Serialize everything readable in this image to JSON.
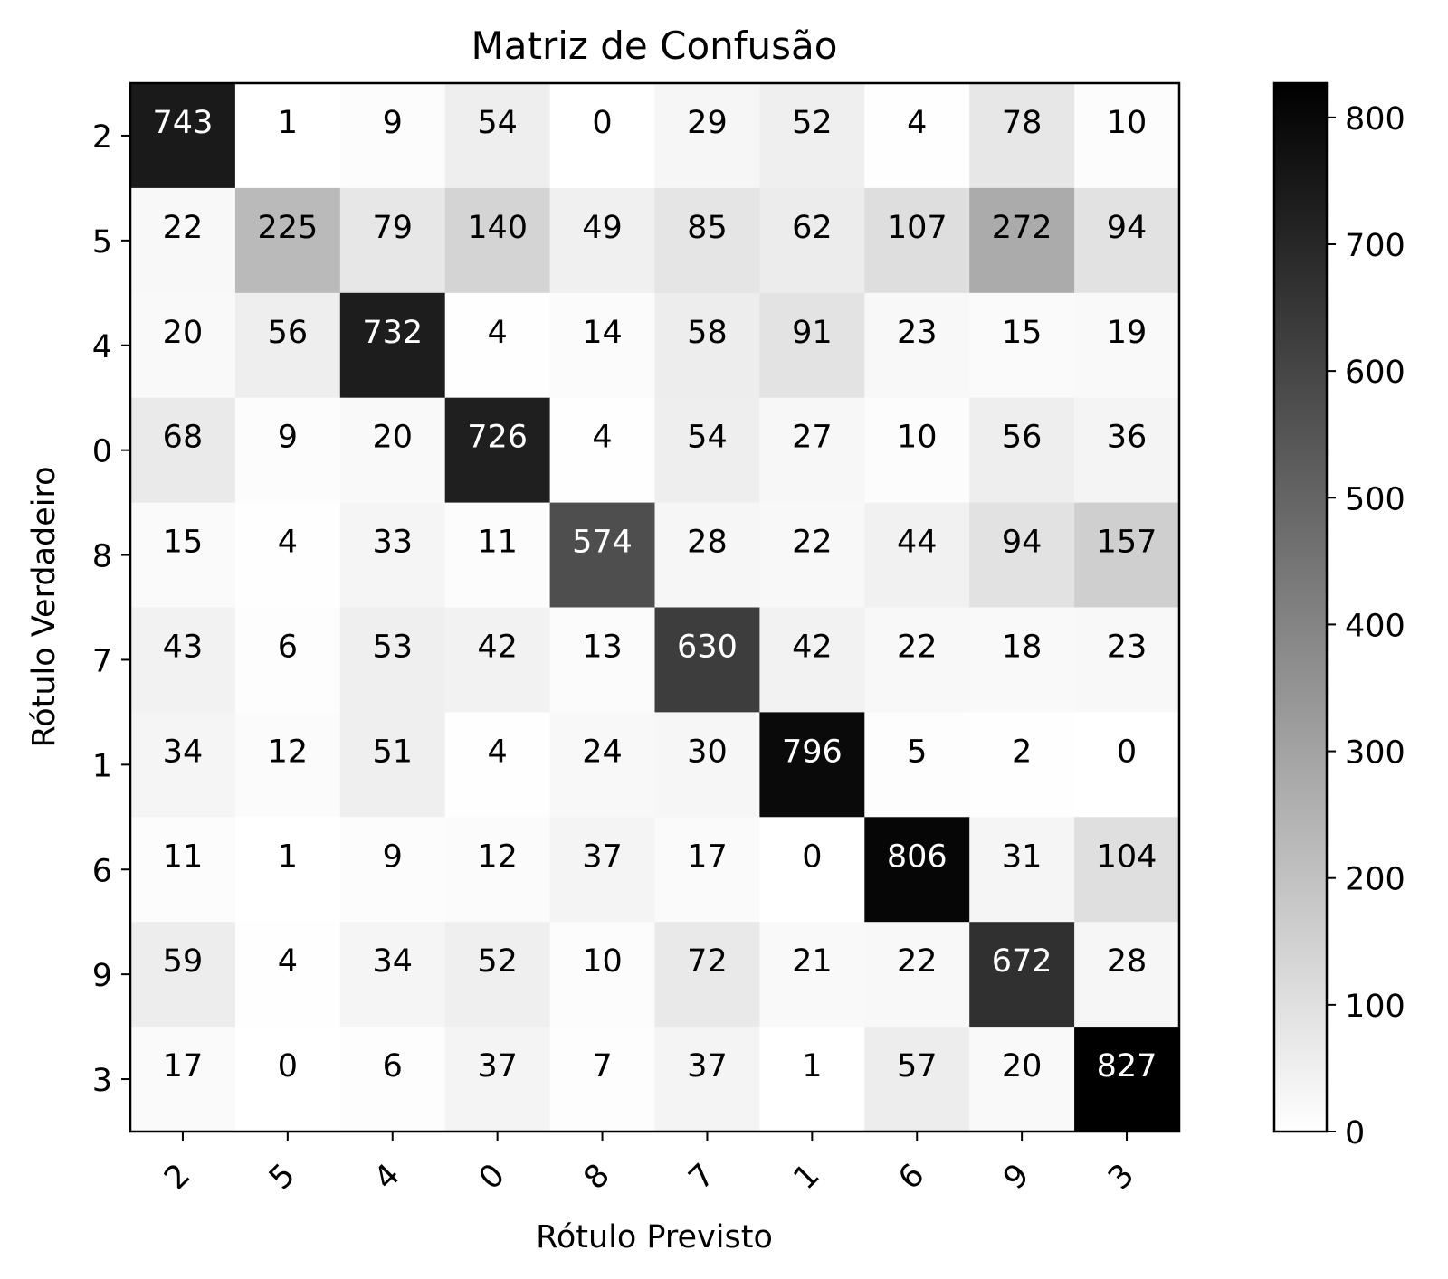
{
  "chart_data": {
    "type": "heatmap",
    "title": "Matriz de Confusão",
    "xlabel": "Rótulo Previsto",
    "ylabel": "Rótulo Verdadeiro",
    "x_categories": [
      "2",
      "5",
      "4",
      "0",
      "8",
      "7",
      "1",
      "6",
      "9",
      "3"
    ],
    "y_categories": [
      "2",
      "5",
      "4",
      "0",
      "8",
      "7",
      "1",
      "6",
      "9",
      "3"
    ],
    "values": [
      [
        743,
        1,
        9,
        54,
        0,
        29,
        52,
        4,
        78,
        10
      ],
      [
        22,
        225,
        79,
        140,
        49,
        85,
        62,
        107,
        272,
        94
      ],
      [
        20,
        56,
        732,
        4,
        14,
        58,
        91,
        23,
        15,
        19
      ],
      [
        68,
        9,
        20,
        726,
        4,
        54,
        27,
        10,
        56,
        36
      ],
      [
        15,
        4,
        33,
        11,
        574,
        28,
        22,
        44,
        94,
        157
      ],
      [
        43,
        6,
        53,
        42,
        13,
        630,
        42,
        22,
        18,
        23
      ],
      [
        34,
        12,
        51,
        4,
        24,
        30,
        796,
        5,
        2,
        0
      ],
      [
        11,
        1,
        9,
        12,
        37,
        17,
        0,
        806,
        31,
        104
      ],
      [
        59,
        4,
        34,
        52,
        10,
        72,
        21,
        22,
        672,
        28
      ],
      [
        17,
        0,
        6,
        37,
        7,
        37,
        1,
        57,
        20,
        827
      ]
    ],
    "colormap": "Greys",
    "colorbar": {
      "range": [
        0,
        827
      ],
      "ticks": [
        "0",
        "100",
        "200",
        "300",
        "400",
        "500",
        "600",
        "700",
        "800"
      ]
    },
    "x_tick_rotation_deg": 45,
    "grid": false,
    "legend": "none"
  }
}
